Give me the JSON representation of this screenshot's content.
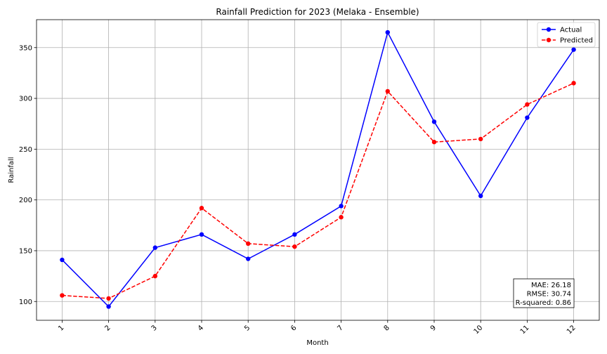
{
  "chart_data": {
    "type": "line",
    "title": "Rainfall Prediction for 2023 (Melaka - Ensemble)",
    "xlabel": "Month",
    "ylabel": "Rainfall",
    "categories": [
      "1",
      "2",
      "3",
      "4",
      "5",
      "6",
      "7",
      "8",
      "9",
      "10",
      "11",
      "12"
    ],
    "x": [
      1,
      2,
      3,
      4,
      5,
      6,
      7,
      8,
      9,
      10,
      11,
      12
    ],
    "xlim": [
      0.45,
      12.55
    ],
    "ylim": [
      81.5,
      377.5
    ],
    "yticks": [
      100,
      150,
      200,
      250,
      300,
      350
    ],
    "ytick_labels": [
      "100",
      "150",
      "200",
      "250",
      "300",
      "350"
    ],
    "grid": true,
    "legend_position": "top-right",
    "series": [
      {
        "name": "Actual",
        "color": "#0000ff",
        "style": "solid",
        "marker": "circle",
        "values": [
          141,
          95,
          153,
          166,
          142,
          166,
          194,
          365,
          277,
          204,
          281,
          348
        ]
      },
      {
        "name": "Predicted",
        "color": "#ff0000",
        "style": "dashed",
        "marker": "circle",
        "values": [
          106,
          103,
          125,
          192,
          157,
          154,
          183,
          307,
          257,
          260,
          294,
          315
        ]
      }
    ],
    "annotation": {
      "position": "bottom-right",
      "lines": [
        "MAE: 26.18",
        "RMSE: 30.74",
        "R-squared: 0.86"
      ]
    }
  }
}
